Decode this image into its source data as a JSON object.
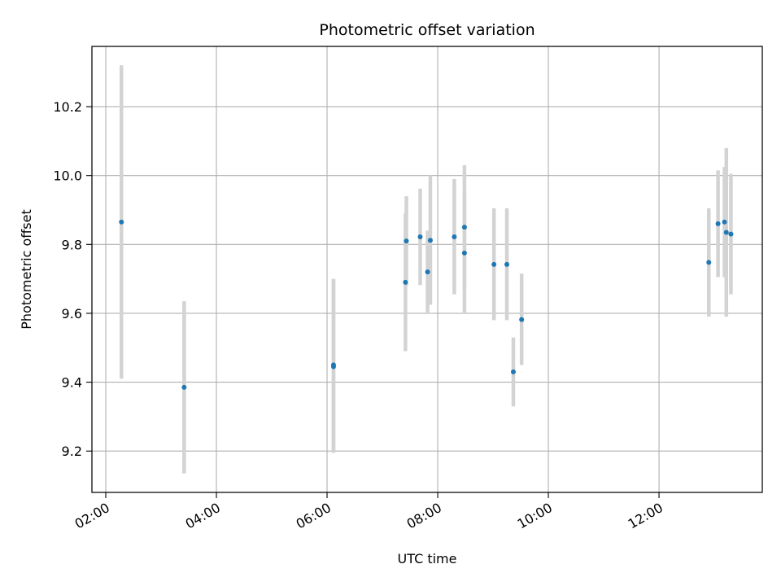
{
  "chart_data": {
    "type": "scatter",
    "title": "Photometric offset variation",
    "xlabel": "UTC time",
    "ylabel": "Photometric offset",
    "x_ticks": [
      "02:00",
      "04:00",
      "06:00",
      "08:00",
      "10:00",
      "12:00"
    ],
    "y_ticks": [
      "9.2",
      "9.4",
      "9.6",
      "9.8",
      "10.0",
      "10.2"
    ],
    "xlim": [
      "01:45",
      "13:52"
    ],
    "ylim": [
      9.08,
      10.375
    ],
    "grid": true,
    "colors": {
      "point": "#1f77b4",
      "errorbar": "#d3d3d3",
      "grid": "#b0b0b0"
    },
    "points": [
      {
        "x": "02:17",
        "y": 9.865,
        "y_low": 9.41,
        "y_high": 10.32
      },
      {
        "x": "03:25",
        "y": 9.385,
        "y_low": 9.135,
        "y_high": 9.635
      },
      {
        "x": "06:07",
        "y": 9.445,
        "y_low": 9.195,
        "y_high": 9.695
      },
      {
        "x": "06:07",
        "y": 9.45,
        "y_low": 9.2,
        "y_high": 9.7
      },
      {
        "x": "07:25",
        "y": 9.69,
        "y_low": 9.49,
        "y_high": 9.89
      },
      {
        "x": "07:26",
        "y": 9.81,
        "y_low": 9.68,
        "y_high": 9.94
      },
      {
        "x": "07:41",
        "y": 9.822,
        "y_low": 9.682,
        "y_high": 9.962
      },
      {
        "x": "07:49",
        "y": 9.72,
        "y_low": 9.6,
        "y_high": 9.84
      },
      {
        "x": "07:52",
        "y": 9.812,
        "y_low": 9.625,
        "y_high": 10.0
      },
      {
        "x": "08:18",
        "y": 9.822,
        "y_low": 9.655,
        "y_high": 9.99
      },
      {
        "x": "08:29",
        "y": 9.85,
        "y_low": 9.67,
        "y_high": 10.03
      },
      {
        "x": "08:29",
        "y": 9.775,
        "y_low": 9.6,
        "y_high": 9.95
      },
      {
        "x": "09:01",
        "y": 9.742,
        "y_low": 9.58,
        "y_high": 9.905
      },
      {
        "x": "09:15",
        "y": 9.742,
        "y_low": 9.58,
        "y_high": 9.905
      },
      {
        "x": "09:22",
        "y": 9.43,
        "y_low": 9.33,
        "y_high": 9.53
      },
      {
        "x": "09:31",
        "y": 9.582,
        "y_low": 9.45,
        "y_high": 9.715
      },
      {
        "x": "12:54",
        "y": 9.748,
        "y_low": 9.59,
        "y_high": 9.905
      },
      {
        "x": "13:04",
        "y": 9.86,
        "y_low": 9.705,
        "y_high": 10.015
      },
      {
        "x": "13:11",
        "y": 9.865,
        "y_low": 9.705,
        "y_high": 10.025
      },
      {
        "x": "13:13",
        "y": 9.835,
        "y_low": 9.59,
        "y_high": 10.08
      },
      {
        "x": "13:18",
        "y": 9.83,
        "y_low": 9.655,
        "y_high": 10.005
      }
    ]
  }
}
